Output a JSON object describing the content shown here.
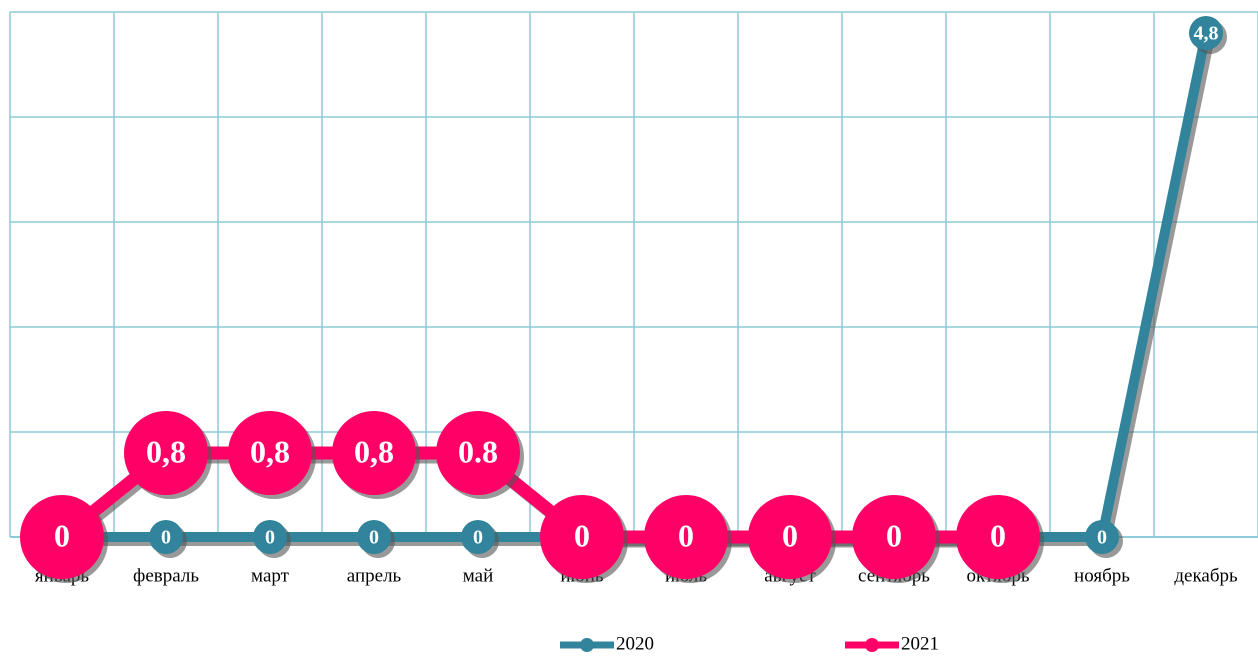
{
  "chart_data": {
    "type": "line",
    "categories": [
      "январь",
      "февраль",
      "март",
      "апрель",
      "май",
      "июнь",
      "июль",
      "август",
      "сентябрь",
      "октябрь",
      "ноябрь",
      "декабрь"
    ],
    "series": [
      {
        "name": "2020",
        "color": "#31849b",
        "values": [
          0,
          0,
          0,
          0,
          0,
          0,
          0,
          0,
          0,
          0,
          0,
          4.8
        ],
        "value_labels": [
          "0",
          "0",
          "0",
          "0",
          "0",
          "0",
          "0",
          "0",
          "0",
          "0",
          "0",
          "4,8"
        ]
      },
      {
        "name": "2021",
        "color": "#ff0066",
        "values": [
          0,
          0.8,
          0.8,
          0.8,
          0.8,
          0,
          0,
          0,
          0,
          0,
          null,
          null
        ],
        "value_labels": [
          "0",
          "0,8",
          "0,8",
          "0,8",
          "0.8",
          "0",
          "0",
          "0",
          "0",
          "0",
          null,
          null
        ]
      }
    ],
    "ylim": [
      0,
      5
    ],
    "yticks": [
      0,
      1,
      2,
      3,
      4,
      5
    ],
    "grid": true,
    "legend": "bottom"
  }
}
